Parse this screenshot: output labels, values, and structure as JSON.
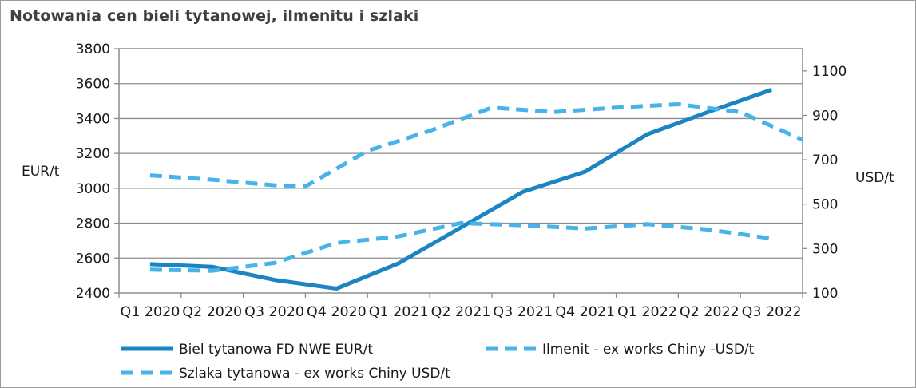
{
  "chart_data": {
    "type": "line",
    "title": "Notowania cen bieli tytanowej, ilmenitu i szlaki",
    "categories": [
      "Q1 2020",
      "Q2 2020",
      "Q3 2020",
      "Q4 2020",
      "Q1 2021",
      "Q2 2021",
      "Q3 2021",
      "Q4 2021",
      "Q1 2022",
      "Q2 2022",
      "Q3 2022"
    ],
    "ylabel": "EUR/t",
    "y2label": "USD/t",
    "ylim": [
      2400,
      3800
    ],
    "y2lim": [
      100,
      1200
    ],
    "yticks": [
      "2400",
      "2600",
      "2800",
      "3000",
      "3200",
      "3400",
      "3600",
      "3800"
    ],
    "y2ticks": [
      "100",
      "300",
      "500",
      "700",
      "900",
      "1100"
    ],
    "grid": true,
    "legend_position": "bottom",
    "series": [
      {
        "name": "Biel tytanowa FD NWE EUR/t",
        "axis": "left",
        "style": "solid",
        "color": "#1a85c2",
        "x": [
          0,
          1,
          2,
          3,
          4,
          5,
          6,
          7,
          8,
          9,
          10
        ],
        "values": [
          2565,
          2550,
          2475,
          2425,
          2570,
          2775,
          2980,
          3095,
          3310,
          3440,
          3565
        ]
      },
      {
        "name": "Ilmenit - ex works Chiny -USD/t",
        "axis": "right",
        "style": "dashed",
        "color": "#47b3e8",
        "x": [
          0,
          1,
          2,
          3,
          4,
          5,
          6,
          7,
          8,
          9,
          10
        ],
        "values": [
          205,
          200,
          235,
          325,
          355,
          415,
          405,
          390,
          410,
          385,
          345
        ]
      },
      {
        "name": "Szlaka tytanowa - ex works Chiny USD/t",
        "axis": "right",
        "style": "dashed",
        "color": "#47b3e8",
        "x": [
          0,
          1,
          2,
          2.5,
          3.5,
          4.5,
          5.5,
          6.5,
          7.5,
          8.5,
          9.5,
          10.5
        ],
        "values": [
          630,
          610,
          585,
          580,
          740,
          830,
          935,
          915,
          935,
          950,
          915,
          790
        ]
      }
    ]
  }
}
